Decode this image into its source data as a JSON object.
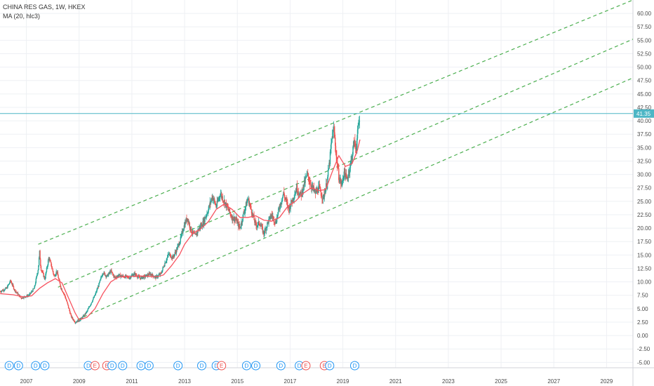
{
  "header": {
    "symbol_line": "CHINA RES GAS, 1W, HKEX",
    "indicator_line": "MA (20, hlc3)"
  },
  "colors": {
    "up": "#26a69a",
    "down": "#ef5350",
    "ma": "#f7525f",
    "channel": "#4caf50",
    "price_line": "#4db6c5",
    "grid": "#eef0f4",
    "axis_text": "#4a4a4a",
    "dividend_badge": "#2196f3",
    "earnings_badge": "#ef5350"
  },
  "chart_data": {
    "type": "candlestick",
    "title": "CHINA RES GAS, 1W, HKEX",
    "indicator": "MA (20, hlc3)",
    "x_axis": {
      "tick_labels": [
        "2007",
        "2009",
        "2011",
        "2013",
        "2015",
        "2017",
        "2019",
        "2021",
        "2023",
        "2025",
        "2027",
        "2029"
      ],
      "range": [
        2006.0,
        2030.0
      ]
    },
    "y_axis": {
      "side": "right",
      "range": [
        -6.0,
        62.5
      ],
      "tick_labels": [
        "60.00",
        "57.50",
        "55.00",
        "52.50",
        "50.00",
        "47.50",
        "45.00",
        "42.50",
        "40.00",
        "37.50",
        "35.00",
        "32.50",
        "30.00",
        "27.50",
        "25.00",
        "22.50",
        "20.00",
        "17.50",
        "15.00",
        "12.50",
        "10.00",
        "7.50",
        "5.00",
        "2.50",
        "0.00",
        "-2.50",
        "-5.00"
      ],
      "tick_values": [
        60,
        57.5,
        55,
        52.5,
        50,
        47.5,
        45,
        42.5,
        40,
        37.5,
        35,
        32.5,
        30,
        27.5,
        25,
        22.5,
        20,
        17.5,
        15,
        12.5,
        10,
        7.5,
        5,
        2.5,
        0,
        -2.5,
        -5
      ]
    },
    "grid": true,
    "last_price": {
      "value": 41.35,
      "label": "41.35"
    },
    "price_path": [
      [
        2006.0,
        8.2
      ],
      [
        2006.25,
        8.8
      ],
      [
        2006.4,
        10.2
      ],
      [
        2006.55,
        8.5
      ],
      [
        2006.8,
        7.0
      ],
      [
        2007.1,
        7.5
      ],
      [
        2007.3,
        8.8
      ],
      [
        2007.45,
        12.5
      ],
      [
        2007.5,
        15.5
      ],
      [
        2007.55,
        12.5
      ],
      [
        2007.7,
        10.5
      ],
      [
        2007.85,
        14.5
      ],
      [
        2007.95,
        13.0
      ],
      [
        2008.05,
        11.0
      ],
      [
        2008.15,
        12.0
      ],
      [
        2008.3,
        9.0
      ],
      [
        2008.45,
        7.5
      ],
      [
        2008.55,
        6.0
      ],
      [
        2008.7,
        3.5
      ],
      [
        2008.85,
        2.5
      ],
      [
        2009.0,
        2.8
      ],
      [
        2009.15,
        3.5
      ],
      [
        2009.3,
        4.5
      ],
      [
        2009.45,
        6.0
      ],
      [
        2009.6,
        7.5
      ],
      [
        2009.75,
        9.5
      ],
      [
        2009.9,
        11.8
      ],
      [
        2010.05,
        11.0
      ],
      [
        2010.2,
        12.0
      ],
      [
        2010.35,
        10.8
      ],
      [
        2010.5,
        11.2
      ],
      [
        2010.7,
        11.0
      ],
      [
        2010.9,
        10.8
      ],
      [
        2011.1,
        11.5
      ],
      [
        2011.3,
        10.7
      ],
      [
        2011.5,
        11.0
      ],
      [
        2011.7,
        11.5
      ],
      [
        2011.9,
        10.8
      ],
      [
        2012.1,
        11.5
      ],
      [
        2012.25,
        13.5
      ],
      [
        2012.4,
        15.2
      ],
      [
        2012.55,
        14.5
      ],
      [
        2012.7,
        16.0
      ],
      [
        2012.85,
        18.0
      ],
      [
        2012.95,
        20.0
      ],
      [
        2013.1,
        22.0
      ],
      [
        2013.25,
        19.5
      ],
      [
        2013.4,
        18.5
      ],
      [
        2013.55,
        20.0
      ],
      [
        2013.7,
        21.0
      ],
      [
        2013.9,
        23.5
      ],
      [
        2014.05,
        26.0
      ],
      [
        2014.2,
        24.0
      ],
      [
        2014.35,
        26.5
      ],
      [
        2014.5,
        25.0
      ],
      [
        2014.65,
        23.5
      ],
      [
        2014.8,
        22.0
      ],
      [
        2014.95,
        21.5
      ],
      [
        2015.1,
        20.0
      ],
      [
        2015.25,
        23.0
      ],
      [
        2015.4,
        25.5
      ],
      [
        2015.55,
        23.0
      ],
      [
        2015.7,
        20.5
      ],
      [
        2015.85,
        21.0
      ],
      [
        2016.0,
        19.0
      ],
      [
        2016.15,
        21.0
      ],
      [
        2016.3,
        22.5
      ],
      [
        2016.45,
        21.0
      ],
      [
        2016.6,
        24.0
      ],
      [
        2016.75,
        26.5
      ],
      [
        2016.85,
        25.0
      ],
      [
        2016.95,
        23.5
      ],
      [
        2017.1,
        25.5
      ],
      [
        2017.25,
        27.5
      ],
      [
        2017.4,
        26.0
      ],
      [
        2017.55,
        28.5
      ],
      [
        2017.65,
        30.0
      ],
      [
        2017.8,
        28.0
      ],
      [
        2017.95,
        26.5
      ],
      [
        2018.1,
        27.5
      ],
      [
        2018.25,
        25.5
      ],
      [
        2018.4,
        28.5
      ],
      [
        2018.5,
        32.5
      ],
      [
        2018.58,
        36.5
      ],
      [
        2018.66,
        38.5
      ],
      [
        2018.75,
        33.5
      ],
      [
        2018.85,
        29.5
      ],
      [
        2018.95,
        28.0
      ],
      [
        2019.05,
        30.5
      ],
      [
        2019.15,
        29.0
      ],
      [
        2019.25,
        31.0
      ],
      [
        2019.35,
        33.5
      ],
      [
        2019.42,
        36.0
      ],
      [
        2019.5,
        35.0
      ],
      [
        2019.58,
        38.5
      ],
      [
        2019.65,
        41.35
      ]
    ],
    "moving_average": [
      [
        2006.0,
        7.8
      ],
      [
        2006.5,
        7.6
      ],
      [
        2006.9,
        7.2
      ],
      [
        2007.2,
        7.4
      ],
      [
        2007.5,
        8.8
      ],
      [
        2007.8,
        9.8
      ],
      [
        2008.1,
        10.6
      ],
      [
        2008.35,
        9.8
      ],
      [
        2008.6,
        7.0
      ],
      [
        2008.85,
        4.2
      ],
      [
        2009.0,
        2.9
      ],
      [
        2009.3,
        3.4
      ],
      [
        2009.6,
        5.0
      ],
      [
        2009.9,
        7.8
      ],
      [
        2010.2,
        10.0
      ],
      [
        2010.5,
        10.9
      ],
      [
        2010.9,
        11.0
      ],
      [
        2011.3,
        11.1
      ],
      [
        2011.7,
        11.0
      ],
      [
        2012.0,
        11.0
      ],
      [
        2012.2,
        11.3
      ],
      [
        2012.5,
        13.0
      ],
      [
        2012.8,
        15.0
      ],
      [
        2013.0,
        17.0
      ],
      [
        2013.3,
        19.0
      ],
      [
        2013.6,
        19.8
      ],
      [
        2013.9,
        21.2
      ],
      [
        2014.2,
        23.5
      ],
      [
        2014.5,
        24.5
      ],
      [
        2014.8,
        23.5
      ],
      [
        2015.1,
        22.0
      ],
      [
        2015.4,
        22.0
      ],
      [
        2015.7,
        22.3
      ],
      [
        2016.0,
        21.5
      ],
      [
        2016.3,
        21.3
      ],
      [
        2016.6,
        22.0
      ],
      [
        2016.9,
        24.0
      ],
      [
        2017.2,
        25.0
      ],
      [
        2017.5,
        26.5
      ],
      [
        2017.8,
        27.5
      ],
      [
        2018.1,
        27.0
      ],
      [
        2018.35,
        27.2
      ],
      [
        2018.6,
        30.5
      ],
      [
        2018.85,
        33.5
      ],
      [
        2019.1,
        31.5
      ],
      [
        2019.35,
        32.0
      ],
      [
        2019.55,
        34.5
      ],
      [
        2019.65,
        36.5
      ]
    ],
    "channel_lines": [
      {
        "from": [
          2007.45,
          17.0
        ],
        "to": [
          2030.0,
          62.5
        ]
      },
      {
        "from": [
          2008.2,
          9.0
        ],
        "to": [
          2030.0,
          55.2
        ]
      },
      {
        "from": [
          2008.95,
          3.0
        ],
        "to": [
          2030.0,
          48.0
        ]
      }
    ],
    "events": [
      {
        "label": "D",
        "type": "dividend",
        "x": 2006.35
      },
      {
        "label": "D",
        "type": "dividend",
        "x": 2006.7
      },
      {
        "label": "D",
        "type": "dividend",
        "x": 2007.35
      },
      {
        "label": "D",
        "type": "dividend",
        "x": 2007.7
      },
      {
        "label": "D",
        "type": "dividend",
        "x": 2009.35
      },
      {
        "label": "E",
        "type": "earnings",
        "x": 2009.6
      },
      {
        "label": "E",
        "type": "earnings",
        "x": 2010.05
      },
      {
        "label": "D",
        "type": "dividend",
        "x": 2010.25
      },
      {
        "label": "D",
        "type": "dividend",
        "x": 2010.65
      },
      {
        "label": "D",
        "type": "dividend",
        "x": 2011.35
      },
      {
        "label": "D",
        "type": "dividend",
        "x": 2011.65
      },
      {
        "label": "D",
        "type": "dividend",
        "x": 2012.75
      },
      {
        "label": "D",
        "type": "dividend",
        "x": 2013.65
      },
      {
        "label": "D",
        "type": "dividend",
        "x": 2014.2
      },
      {
        "label": "E",
        "type": "earnings",
        "x": 2014.4
      },
      {
        "label": "D",
        "type": "dividend",
        "x": 2015.35
      },
      {
        "label": "D",
        "type": "dividend",
        "x": 2015.7
      },
      {
        "label": "D",
        "type": "dividend",
        "x": 2016.65
      },
      {
        "label": "D",
        "type": "dividend",
        "x": 2017.35
      },
      {
        "label": "E",
        "type": "earnings",
        "x": 2017.6
      },
      {
        "label": "E",
        "type": "earnings",
        "x": 2018.3
      },
      {
        "label": "D",
        "type": "dividend",
        "x": 2018.5
      },
      {
        "label": "D",
        "type": "dividend",
        "x": 2019.45
      }
    ]
  }
}
